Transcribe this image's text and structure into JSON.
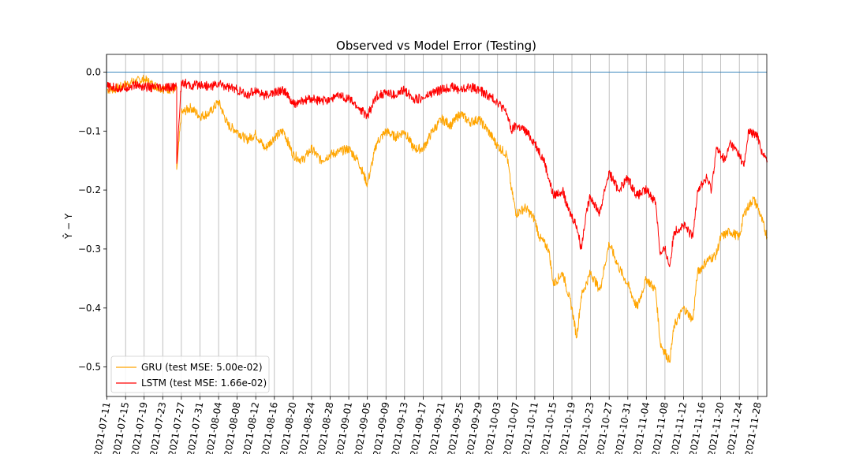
{
  "chart_data": {
    "type": "line",
    "title": "Observed vs Model Error (Testing)",
    "xlabel": "",
    "ylabel": "Ŷ − Y",
    "xlim": [
      "2021-07-11",
      "2021-11-30"
    ],
    "ylim": [
      -0.55,
      0.03
    ],
    "x_ticks": [
      "2021-07-11",
      "2021-07-15",
      "2021-07-19",
      "2021-07-23",
      "2021-07-27",
      "2021-07-31",
      "2021-08-04",
      "2021-08-08",
      "2021-08-12",
      "2021-08-16",
      "2021-08-20",
      "2021-08-24",
      "2021-08-28",
      "2021-09-01",
      "2021-09-05",
      "2021-09-09",
      "2021-09-13",
      "2021-09-17",
      "2021-09-21",
      "2021-09-25",
      "2021-09-29",
      "2021-10-03",
      "2021-10-07",
      "2021-10-11",
      "2021-10-15",
      "2021-10-19",
      "2021-10-23",
      "2021-10-27",
      "2021-10-31",
      "2021-11-04",
      "2021-11-08",
      "2021-11-12",
      "2021-11-16",
      "2021-11-20",
      "2021-11-24",
      "2021-11-28"
    ],
    "y_ticks": [
      "0.0",
      "−0.1",
      "−0.2",
      "−0.3",
      "−0.4",
      "−0.5"
    ],
    "y_tick_values": [
      0.0,
      -0.1,
      -0.2,
      -0.3,
      -0.4,
      -0.5
    ],
    "reference_line": {
      "y": 0.0,
      "color": "#1f77b4"
    },
    "grid": "vertical",
    "legend_position": "lower-left",
    "series": [
      {
        "name": "GRU (test MSE: 5.00e-02)",
        "color": "#ffa500",
        "points": [
          [
            "2021-07-11",
            -0.03
          ],
          [
            "2021-07-13",
            -0.028
          ],
          [
            "2021-07-16",
            -0.018
          ],
          [
            "2021-07-19",
            -0.012
          ],
          [
            "2021-07-21",
            -0.022
          ],
          [
            "2021-07-23",
            -0.028
          ],
          [
            "2021-07-26",
            -0.03
          ],
          [
            "2021-07-26",
            -0.165
          ],
          [
            "2021-07-27",
            -0.07
          ],
          [
            "2021-07-29",
            -0.06
          ],
          [
            "2021-07-31",
            -0.075
          ],
          [
            "2021-08-02",
            -0.07
          ],
          [
            "2021-08-04",
            -0.05
          ],
          [
            "2021-08-06",
            -0.09
          ],
          [
            "2021-08-08",
            -0.1
          ],
          [
            "2021-08-10",
            -0.115
          ],
          [
            "2021-08-12",
            -0.105
          ],
          [
            "2021-08-14",
            -0.13
          ],
          [
            "2021-08-16",
            -0.11
          ],
          [
            "2021-08-18",
            -0.1
          ],
          [
            "2021-08-20",
            -0.14
          ],
          [
            "2021-08-22",
            -0.15
          ],
          [
            "2021-08-24",
            -0.13
          ],
          [
            "2021-08-26",
            -0.15
          ],
          [
            "2021-08-28",
            -0.14
          ],
          [
            "2021-08-30",
            -0.135
          ],
          [
            "2021-09-01",
            -0.13
          ],
          [
            "2021-09-03",
            -0.15
          ],
          [
            "2021-09-05",
            -0.19
          ],
          [
            "2021-09-07",
            -0.12
          ],
          [
            "2021-09-09",
            -0.1
          ],
          [
            "2021-09-11",
            -0.11
          ],
          [
            "2021-09-13",
            -0.1
          ],
          [
            "2021-09-15",
            -0.13
          ],
          [
            "2021-09-17",
            -0.13
          ],
          [
            "2021-09-19",
            -0.1
          ],
          [
            "2021-09-21",
            -0.08
          ],
          [
            "2021-09-23",
            -0.09
          ],
          [
            "2021-09-25",
            -0.07
          ],
          [
            "2021-09-27",
            -0.085
          ],
          [
            "2021-09-29",
            -0.08
          ],
          [
            "2021-10-01",
            -0.1
          ],
          [
            "2021-10-03",
            -0.125
          ],
          [
            "2021-10-05",
            -0.14
          ],
          [
            "2021-10-06",
            -0.2
          ],
          [
            "2021-10-07",
            -0.24
          ],
          [
            "2021-10-09",
            -0.23
          ],
          [
            "2021-10-11",
            -0.25
          ],
          [
            "2021-10-12",
            -0.28
          ],
          [
            "2021-10-14",
            -0.3
          ],
          [
            "2021-10-15",
            -0.36
          ],
          [
            "2021-10-17",
            -0.34
          ],
          [
            "2021-10-19",
            -0.4
          ],
          [
            "2021-10-20",
            -0.45
          ],
          [
            "2021-10-21",
            -0.38
          ],
          [
            "2021-10-23",
            -0.34
          ],
          [
            "2021-10-25",
            -0.37
          ],
          [
            "2021-10-27",
            -0.29
          ],
          [
            "2021-10-29",
            -0.33
          ],
          [
            "2021-10-31",
            -0.36
          ],
          [
            "2021-11-02",
            -0.4
          ],
          [
            "2021-11-04",
            -0.35
          ],
          [
            "2021-11-06",
            -0.37
          ],
          [
            "2021-11-07",
            -0.46
          ],
          [
            "2021-11-09",
            -0.49
          ],
          [
            "2021-11-10",
            -0.43
          ],
          [
            "2021-11-12",
            -0.4
          ],
          [
            "2021-11-14",
            -0.42
          ],
          [
            "2021-11-15",
            -0.34
          ],
          [
            "2021-11-17",
            -0.32
          ],
          [
            "2021-11-19",
            -0.31
          ],
          [
            "2021-11-20",
            -0.28
          ],
          [
            "2021-11-22",
            -0.27
          ],
          [
            "2021-11-24",
            -0.28
          ],
          [
            "2021-11-25",
            -0.24
          ],
          [
            "2021-11-27",
            -0.215
          ],
          [
            "2021-11-28",
            -0.23
          ],
          [
            "2021-11-30",
            -0.28
          ]
        ]
      },
      {
        "name": "LSTM (test MSE: 1.66e-02)",
        "color": "#ff0000",
        "points": [
          [
            "2021-07-11",
            -0.025
          ],
          [
            "2021-07-14",
            -0.028
          ],
          [
            "2021-07-17",
            -0.022
          ],
          [
            "2021-07-20",
            -0.026
          ],
          [
            "2021-07-23",
            -0.028
          ],
          [
            "2021-07-26",
            -0.025
          ],
          [
            "2021-07-26",
            -0.155
          ],
          [
            "2021-07-27",
            -0.015
          ],
          [
            "2021-07-29",
            -0.025
          ],
          [
            "2021-07-31",
            -0.02
          ],
          [
            "2021-08-02",
            -0.025
          ],
          [
            "2021-08-04",
            -0.02
          ],
          [
            "2021-08-06",
            -0.025
          ],
          [
            "2021-08-08",
            -0.03
          ],
          [
            "2021-08-10",
            -0.04
          ],
          [
            "2021-08-12",
            -0.03
          ],
          [
            "2021-08-14",
            -0.04
          ],
          [
            "2021-08-16",
            -0.035
          ],
          [
            "2021-08-18",
            -0.03
          ],
          [
            "2021-08-20",
            -0.055
          ],
          [
            "2021-08-22",
            -0.05
          ],
          [
            "2021-08-24",
            -0.045
          ],
          [
            "2021-08-26",
            -0.05
          ],
          [
            "2021-08-28",
            -0.045
          ],
          [
            "2021-08-30",
            -0.04
          ],
          [
            "2021-09-01",
            -0.045
          ],
          [
            "2021-09-03",
            -0.06
          ],
          [
            "2021-09-05",
            -0.075
          ],
          [
            "2021-09-07",
            -0.04
          ],
          [
            "2021-09-09",
            -0.035
          ],
          [
            "2021-09-11",
            -0.04
          ],
          [
            "2021-09-13",
            -0.03
          ],
          [
            "2021-09-15",
            -0.045
          ],
          [
            "2021-09-17",
            -0.045
          ],
          [
            "2021-09-19",
            -0.035
          ],
          [
            "2021-09-21",
            -0.03
          ],
          [
            "2021-09-23",
            -0.025
          ],
          [
            "2021-09-25",
            -0.03
          ],
          [
            "2021-09-27",
            -0.025
          ],
          [
            "2021-09-29",
            -0.03
          ],
          [
            "2021-10-01",
            -0.04
          ],
          [
            "2021-10-03",
            -0.05
          ],
          [
            "2021-10-05",
            -0.07
          ],
          [
            "2021-10-06",
            -0.1
          ],
          [
            "2021-10-07",
            -0.09
          ],
          [
            "2021-10-09",
            -0.1
          ],
          [
            "2021-10-11",
            -0.12
          ],
          [
            "2021-10-13",
            -0.15
          ],
          [
            "2021-10-14",
            -0.18
          ],
          [
            "2021-10-15",
            -0.21
          ],
          [
            "2021-10-17",
            -0.2
          ],
          [
            "2021-10-18",
            -0.23
          ],
          [
            "2021-10-20",
            -0.26
          ],
          [
            "2021-10-21",
            -0.3
          ],
          [
            "2021-10-22",
            -0.24
          ],
          [
            "2021-10-23",
            -0.21
          ],
          [
            "2021-10-25",
            -0.24
          ],
          [
            "2021-10-26",
            -0.2
          ],
          [
            "2021-10-27",
            -0.17
          ],
          [
            "2021-10-29",
            -0.2
          ],
          [
            "2021-10-31",
            -0.18
          ],
          [
            "2021-11-02",
            -0.21
          ],
          [
            "2021-11-04",
            -0.2
          ],
          [
            "2021-11-06",
            -0.22
          ],
          [
            "2021-11-07",
            -0.31
          ],
          [
            "2021-11-08",
            -0.3
          ],
          [
            "2021-11-09",
            -0.33
          ],
          [
            "2021-11-10",
            -0.27
          ],
          [
            "2021-11-12",
            -0.26
          ],
          [
            "2021-11-14",
            -0.28
          ],
          [
            "2021-11-15",
            -0.2
          ],
          [
            "2021-11-17",
            -0.18
          ],
          [
            "2021-11-18",
            -0.2
          ],
          [
            "2021-11-19",
            -0.13
          ],
          [
            "2021-11-21",
            -0.15
          ],
          [
            "2021-11-22",
            -0.12
          ],
          [
            "2021-11-24",
            -0.14
          ],
          [
            "2021-11-25",
            -0.16
          ],
          [
            "2021-11-26",
            -0.1
          ],
          [
            "2021-11-28",
            -0.11
          ],
          [
            "2021-11-29",
            -0.14
          ],
          [
            "2021-11-30",
            -0.15
          ]
        ]
      }
    ]
  }
}
